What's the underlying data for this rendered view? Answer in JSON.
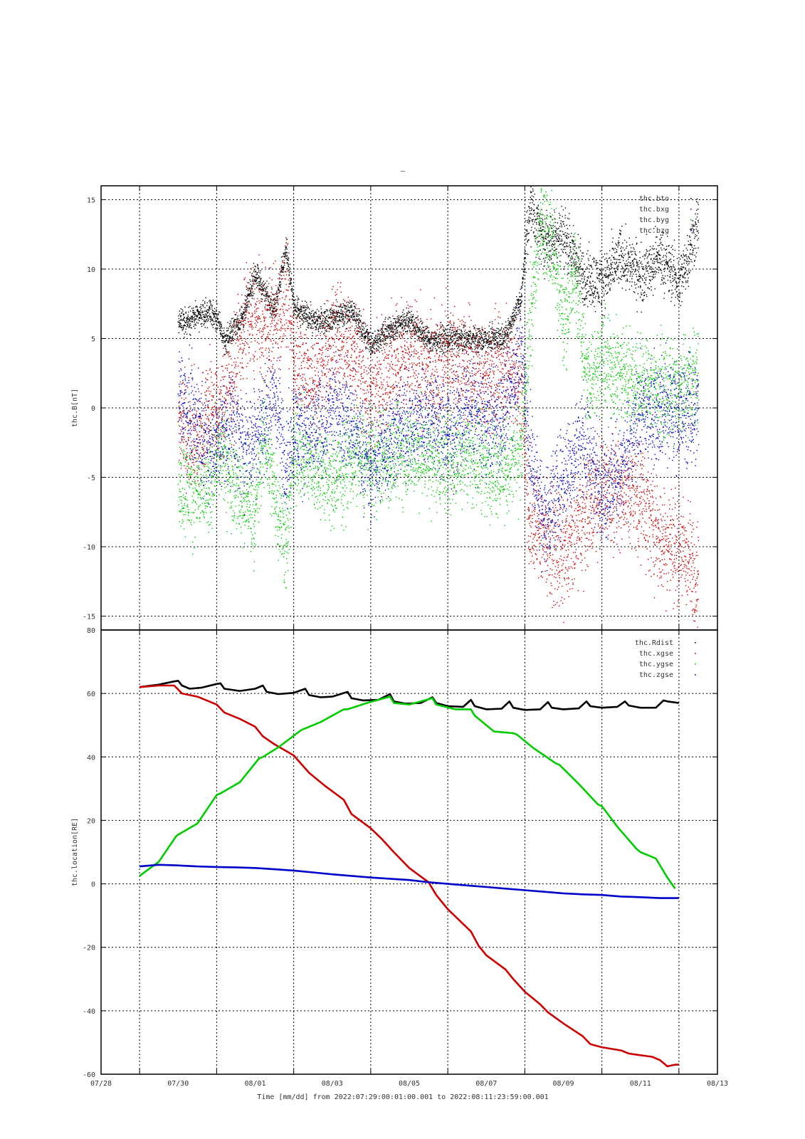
{
  "figure": {
    "title": "–",
    "x_axis_footer": "Time [mm/dd]  from 2022:07:29:00:01:00.001  to  2022:08:11:23:59:00.001"
  },
  "chart_data": [
    {
      "type": "scatter",
      "ylabel": "thc.B[nT]",
      "xlabel": "",
      "xlim": [
        -1,
        15
      ],
      "ylim": [
        -16,
        16
      ],
      "x_tick_values": [
        0,
        2,
        4,
        6,
        8,
        10,
        12,
        14
      ],
      "x_tick_labels": [
        "07/28",
        "07/30",
        "08/01",
        "08/03",
        "08/05",
        "08/07",
        "08/09",
        "08/11"
      ],
      "y_tick_values": [
        15,
        10,
        5,
        0,
        -5,
        -10,
        -15
      ],
      "y_tick_labels": [
        "15",
        "10",
        "5",
        "0",
        "-5",
        "-10",
        "-15"
      ],
      "grid": true,
      "legend_position": "top-right",
      "series": [
        {
          "name": "thc.btot",
          "color": "#000000",
          "legend_label": "thc.bto",
          "x": [
            1.0,
            1.5,
            1.8,
            2.0,
            2.2,
            2.7,
            3.0,
            3.2,
            3.5,
            3.8,
            4.0,
            4.5,
            5.0,
            5.5,
            6.0,
            6.5,
            7.0,
            7.5,
            8.0,
            8.5,
            9.0,
            9.5,
            9.9,
            10.1,
            10.5,
            11.0,
            11.5,
            12.0,
            12.5,
            13.0,
            13.5,
            14.0,
            14.5
          ],
          "y": [
            6.2,
            6.6,
            7.0,
            6.5,
            4.8,
            6.8,
            9.8,
            8.5,
            7.2,
            11.5,
            7.2,
            6.3,
            6.5,
            7.0,
            4.6,
            5.7,
            6.4,
            4.9,
            5.0,
            4.9,
            5.0,
            5.2,
            8.0,
            14.5,
            12.0,
            12.5,
            9.5,
            9.0,
            11.0,
            9.5,
            11.0,
            9.0,
            13.5
          ]
        },
        {
          "name": "thc.bxgse",
          "color": "#cc0000",
          "legend_label": "thc.bxg",
          "x": [
            1.0,
            1.5,
            1.8,
            2.0,
            2.4,
            2.7,
            3.0,
            3.2,
            3.5,
            3.8,
            4.0,
            4.5,
            5.0,
            5.5,
            6.0,
            6.5,
            7.0,
            7.5,
            8.0,
            8.5,
            9.0,
            9.5,
            9.9,
            10.1,
            10.5,
            11.0,
            11.5,
            12.0,
            12.5,
            13.0,
            13.5,
            14.0,
            14.5
          ],
          "y": [
            -1.0,
            -2.5,
            0.5,
            -1.0,
            2.0,
            6.0,
            6.5,
            5.5,
            6.5,
            8.0,
            4.0,
            2.0,
            5.0,
            4.5,
            1.5,
            3.0,
            3.5,
            3.0,
            3.5,
            3.0,
            2.5,
            3.0,
            2.0,
            -8.0,
            -9.0,
            -11.0,
            -8.0,
            -5.5,
            -6.0,
            -6.5,
            -9.5,
            -10.0,
            -12.0
          ]
        },
        {
          "name": "thc.bygse",
          "color": "#00cc00",
          "legend_label": "thc.byg",
          "x": [
            1.0,
            1.5,
            1.8,
            2.0,
            2.4,
            2.7,
            3.0,
            3.2,
            3.5,
            3.8,
            4.0,
            4.5,
            5.0,
            5.5,
            6.0,
            6.5,
            7.0,
            7.5,
            8.0,
            8.5,
            9.0,
            9.5,
            9.9,
            10.1,
            10.4,
            10.7,
            11.0,
            11.3,
            11.6,
            12.0,
            12.5,
            13.0,
            13.5,
            14.0,
            14.5
          ],
          "y": [
            -5.5,
            -6.0,
            -6.2,
            -3.0,
            -5.0,
            -6.5,
            -7.5,
            -2.0,
            -6.0,
            -10.0,
            -3.0,
            -4.0,
            -5.5,
            -3.5,
            -4.0,
            -3.5,
            -3.0,
            -3.5,
            -4.0,
            -3.0,
            -4.0,
            -4.5,
            -3.0,
            5.0,
            14.0,
            12.0,
            6.0,
            10.0,
            2.0,
            3.5,
            2.5,
            2.0,
            1.5,
            1.0,
            2.5
          ]
        },
        {
          "name": "thc.bzgse",
          "color": "#0000cc",
          "legend_label": "thc.bzg",
          "x": [
            1.0,
            1.5,
            1.8,
            2.0,
            2.4,
            2.7,
            3.0,
            3.2,
            3.5,
            3.8,
            4.0,
            4.5,
            5.0,
            5.5,
            6.0,
            6.5,
            7.0,
            7.5,
            8.0,
            8.5,
            9.0,
            9.5,
            9.9,
            10.1,
            10.5,
            11.0,
            11.5,
            12.0,
            12.5,
            13.0,
            13.5,
            14.0,
            14.5
          ],
          "y": [
            1.0,
            -1.0,
            -3.0,
            -2.5,
            -1.0,
            -3.0,
            -2.0,
            -1.0,
            1.0,
            -4.0,
            -1.5,
            -2.0,
            0.0,
            -1.0,
            -4.5,
            -2.0,
            -1.0,
            -0.5,
            -2.0,
            0.0,
            -1.0,
            -0.5,
            5.0,
            -3.0,
            -8.0,
            -5.0,
            -2.0,
            -6.0,
            -4.5,
            -0.5,
            0.0,
            -0.5,
            0.0
          ]
        }
      ]
    },
    {
      "type": "line",
      "ylabel": "thc.location[RE]",
      "xlabel": "Time [mm/dd]  from 2022:07:29:00:01:00.001  to  2022:08:11:23:59:00.001",
      "xlim": [
        -1,
        15
      ],
      "ylim": [
        -60,
        80
      ],
      "x_tick_values": [
        -1,
        1,
        3,
        5,
        7,
        9,
        11,
        13,
        15
      ],
      "x_tick_labels": [
        "07/28",
        "07/30",
        "08/01",
        "08/03",
        "08/05",
        "08/07",
        "08/09",
        "08/11",
        "08/13"
      ],
      "y_tick_values": [
        80,
        60,
        40,
        20,
        0,
        -20,
        -40,
        -60
      ],
      "y_tick_labels": [
        "80",
        "60",
        "40",
        "20",
        "0",
        "-20",
        "-40",
        "-60"
      ],
      "grid": true,
      "legend_position": "top-right",
      "series": [
        {
          "name": "thc.Rdist",
          "color": "#000000",
          "x": [
            0.0,
            0.5,
            0.9,
            1.0,
            1.1,
            1.3,
            1.6,
            2.0,
            2.1,
            2.2,
            2.6,
            3.0,
            3.2,
            3.3,
            3.6,
            4.0,
            4.3,
            4.4,
            4.7,
            5.0,
            5.4,
            5.5,
            5.8,
            6.2,
            6.5,
            6.6,
            6.9,
            7.3,
            7.6,
            7.7,
            8.0,
            8.4,
            8.6,
            8.7,
            9.0,
            9.4,
            9.6,
            9.7,
            10.0,
            10.4,
            10.6,
            10.7,
            11.0,
            11.4,
            11.6,
            11.7,
            12.0,
            12.4,
            12.6,
            12.7,
            13.0,
            13.4,
            13.6,
            13.7,
            14.0
          ],
          "y": [
            62.0,
            62.8,
            63.8,
            64.0,
            62.5,
            61.5,
            61.8,
            63.0,
            63.2,
            61.5,
            60.8,
            61.5,
            62.5,
            60.5,
            59.8,
            60.2,
            61.5,
            59.5,
            58.8,
            59.0,
            60.5,
            58.5,
            57.8,
            58.0,
            59.8,
            57.5,
            56.8,
            57.0,
            58.8,
            57.0,
            56.0,
            55.8,
            58.0,
            56.0,
            55.0,
            55.2,
            57.5,
            55.5,
            54.8,
            55.0,
            57.3,
            55.5,
            55.0,
            55.3,
            57.5,
            56.0,
            55.5,
            55.8,
            57.5,
            56.2,
            55.5,
            55.5,
            57.8,
            57.5,
            57.0
          ]
        },
        {
          "name": "thc.xgse",
          "color": "#cc0000",
          "x": [
            0.0,
            0.5,
            0.9,
            1.1,
            1.5,
            2.0,
            2.2,
            2.6,
            3.0,
            3.2,
            3.5,
            4.0,
            4.4,
            4.8,
            5.3,
            5.5,
            6.0,
            6.3,
            6.6,
            7.0,
            7.5,
            7.7,
            8.0,
            8.6,
            8.8,
            9.0,
            9.5,
            9.7,
            10.0,
            10.4,
            10.6,
            11.0,
            11.5,
            11.7,
            12.0,
            12.5,
            12.7,
            13.0,
            13.3,
            13.5,
            13.7,
            13.9,
            14.0
          ],
          "y": [
            62.0,
            62.5,
            62.5,
            60.0,
            59.0,
            56.5,
            54.0,
            52.0,
            49.5,
            46.5,
            44.0,
            40.5,
            35.0,
            31.0,
            26.5,
            22.0,
            17.5,
            14.0,
            10.0,
            5.0,
            0.5,
            -3.5,
            -8.0,
            -15.0,
            -19.5,
            -22.5,
            -27.0,
            -30.0,
            -34.0,
            -38.0,
            -40.5,
            -44.0,
            -48.0,
            -50.5,
            -51.5,
            -52.5,
            -53.5,
            -54.0,
            -54.5,
            -55.5,
            -57.5,
            -57.0,
            -57.0
          ]
        },
        {
          "name": "thc.ygse",
          "color": "#00cc00",
          "x": [
            0.0,
            0.5,
            0.95,
            1.0,
            1.5,
            2.0,
            2.1,
            2.6,
            3.1,
            3.2,
            3.6,
            4.2,
            4.3,
            4.7,
            5.3,
            5.4,
            5.9,
            6.5,
            6.6,
            7.0,
            7.6,
            7.7,
            8.2,
            8.6,
            8.7,
            9.2,
            9.7,
            9.8,
            10.2,
            10.8,
            10.9,
            11.4,
            11.9,
            12.0,
            12.4,
            12.9,
            13.0,
            13.4,
            13.7,
            13.9
          ],
          "y": [
            2.5,
            7.0,
            15.0,
            15.5,
            19.0,
            28.0,
            28.5,
            32.0,
            39.5,
            40.0,
            43.0,
            48.5,
            49.0,
            51.0,
            55.0,
            55.0,
            57.0,
            59.0,
            57.0,
            56.5,
            58.5,
            56.5,
            55.0,
            55.0,
            53.0,
            48.0,
            47.5,
            47.0,
            43.0,
            38.0,
            37.5,
            31.5,
            25.0,
            24.5,
            18.0,
            11.0,
            10.0,
            8.0,
            2.0,
            -1.5
          ]
        },
        {
          "name": "thc.zgse",
          "color": "#0000cc",
          "x": [
            0.0,
            0.5,
            1.0,
            1.5,
            2.0,
            2.5,
            3.0,
            3.5,
            4.0,
            4.5,
            5.0,
            5.5,
            6.0,
            6.5,
            7.0,
            7.5,
            8.0,
            8.5,
            9.0,
            9.5,
            10.0,
            10.5,
            11.0,
            11.5,
            12.0,
            12.5,
            13.0,
            13.5,
            14.0
          ],
          "y": [
            5.5,
            6.0,
            5.8,
            5.5,
            5.3,
            5.2,
            5.0,
            4.6,
            4.2,
            3.6,
            3.0,
            2.5,
            2.0,
            1.6,
            1.2,
            0.5,
            0.0,
            -0.5,
            -1.0,
            -1.5,
            -2.0,
            -2.5,
            -3.0,
            -3.3,
            -3.5,
            -4.0,
            -4.2,
            -4.5,
            -4.5
          ]
        }
      ]
    }
  ]
}
